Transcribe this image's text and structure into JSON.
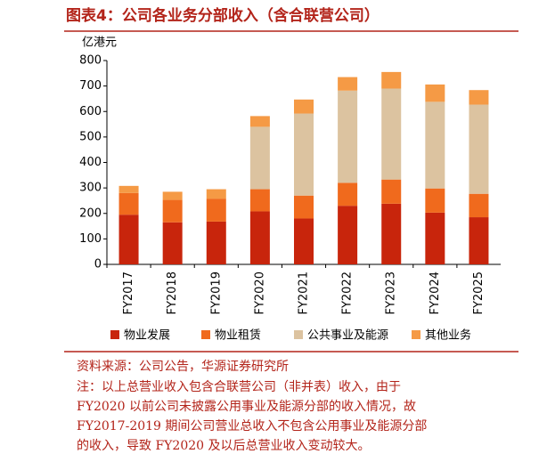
{
  "chart_data": {
    "type": "stacked_bar",
    "title": "图表4：公司各业务分部收入（含合联营公司）",
    "y_label": "亿港元",
    "categories": [
      "FY2017",
      "FY2018",
      "FY2019",
      "FY2020",
      "FY2021",
      "FY2022",
      "FY2023",
      "FY2024",
      "FY2025"
    ],
    "series": [
      {
        "name": "物业发展",
        "color": "#c8250c",
        "values": [
          195,
          165,
          168,
          208,
          180,
          230,
          238,
          203,
          185
        ]
      },
      {
        "name": "物业租赁",
        "color": "#f06a1d",
        "values": [
          85,
          88,
          90,
          87,
          90,
          90,
          95,
          95,
          92
        ]
      },
      {
        "name": "公共事业及能源",
        "color": "#dcc3a0",
        "values": [
          0,
          0,
          0,
          245,
          322,
          362,
          357,
          340,
          350
        ]
      },
      {
        "name": "其他业务",
        "color": "#f59a45",
        "values": [
          28,
          32,
          37,
          42,
          55,
          53,
          65,
          68,
          57
        ]
      }
    ],
    "ylim": [
      0,
      800
    ],
    "yticks": [
      0,
      100,
      200,
      300,
      400,
      500,
      600,
      700,
      800
    ],
    "grid": false,
    "source": "资料来源：公司公告，华源证券研究所",
    "notes": [
      "注：以上总营业收入包含合联营公司（非并表）收入，由于",
      "FY2020 以前公司未披露公用事业及能源分部的收入情况，故",
      "FY2017-2019 期间公司营业总收入不包含公用事业及能源分部",
      "的收入，导致 FY2020 及以后总营业收入变动较大。"
    ]
  }
}
